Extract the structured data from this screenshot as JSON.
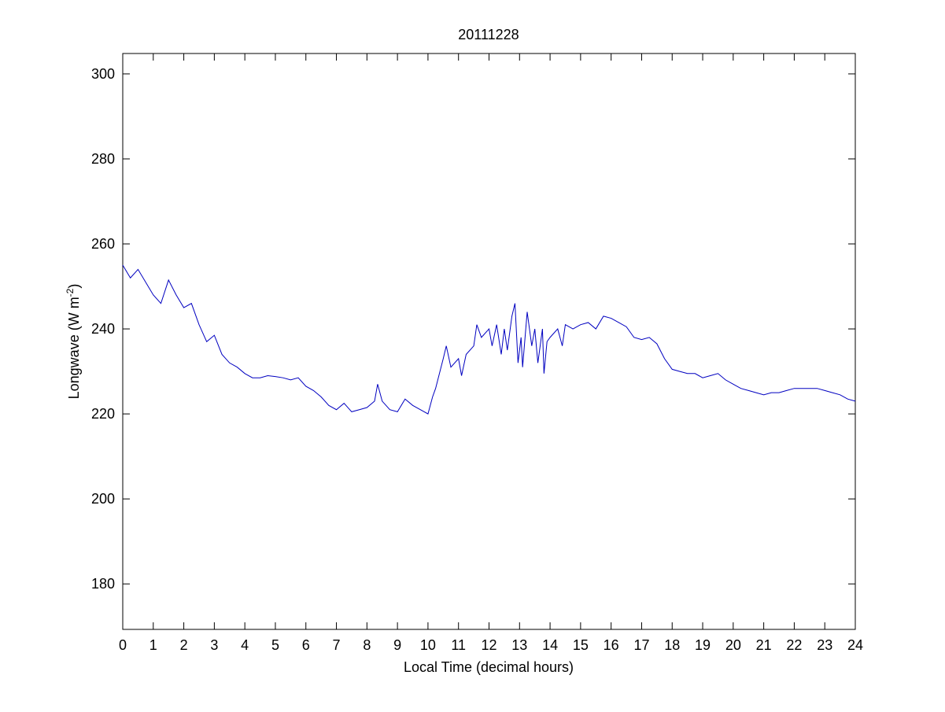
{
  "chart_data": {
    "type": "line",
    "title": "20111228",
    "xlabel": "Local Time (decimal hours)",
    "ylabel": [
      "Longwave (W m",
      "-2",
      ")"
    ],
    "xlim": [
      0,
      24
    ],
    "xticks": [
      0,
      1,
      2,
      3,
      4,
      5,
      6,
      7,
      8,
      9,
      10,
      11,
      12,
      13,
      14,
      15,
      16,
      17,
      18,
      19,
      20,
      21,
      22,
      23,
      24
    ],
    "ylim": [
      169.3,
      304.8
    ],
    "yticks": [
      180,
      200,
      220,
      240,
      260,
      280,
      300
    ],
    "grid": false,
    "series": [
      {
        "name": "Longwave",
        "color": "#0000c0",
        "x": [
          0,
          0.25,
          0.5,
          0.75,
          1,
          1.25,
          1.5,
          1.75,
          2,
          2.25,
          2.5,
          2.75,
          3,
          3.25,
          3.5,
          3.75,
          4,
          4.25,
          4.5,
          4.75,
          5,
          5.25,
          5.5,
          5.75,
          6,
          6.25,
          6.5,
          6.75,
          7,
          7.25,
          7.5,
          7.75,
          8,
          8.25,
          8.35,
          8.5,
          8.75,
          9,
          9.25,
          9.5,
          9.75,
          10,
          10.15,
          10.25,
          10.5,
          10.6,
          10.75,
          11,
          11.1,
          11.25,
          11.5,
          11.6,
          11.75,
          12,
          12.1,
          12.25,
          12.4,
          12.5,
          12.6,
          12.75,
          12.85,
          12.95,
          13.05,
          13.1,
          13.25,
          13.4,
          13.5,
          13.6,
          13.75,
          13.8,
          13.9,
          14,
          14.25,
          14.4,
          14.5,
          14.75,
          15,
          15.25,
          15.5,
          15.75,
          16,
          16.25,
          16.5,
          16.75,
          17,
          17.25,
          17.5,
          17.75,
          18,
          18.25,
          18.5,
          18.75,
          19,
          19.25,
          19.5,
          19.75,
          20,
          20.25,
          20.5,
          20.75,
          21,
          21.25,
          21.5,
          21.75,
          22,
          22.25,
          22.5,
          22.75,
          23,
          23.25,
          23.5,
          23.75,
          24
        ],
        "values": [
          255,
          252,
          254,
          251,
          248,
          246,
          251.5,
          248,
          245,
          246,
          241,
          237,
          238.5,
          234,
          232,
          231,
          229.5,
          228.5,
          228.5,
          229,
          228.8,
          228.5,
          228,
          228.5,
          226.5,
          225.5,
          224,
          222,
          221,
          222.5,
          220.5,
          221,
          221.5,
          223,
          227,
          223,
          221,
          220.5,
          223.5,
          222,
          221,
          220,
          224,
          226,
          233,
          236,
          231,
          233,
          229,
          234,
          236,
          241,
          238,
          240,
          236,
          241,
          234,
          240,
          235,
          243,
          246,
          232,
          238,
          231,
          244,
          236,
          240,
          232,
          240,
          229.5,
          237,
          238,
          240,
          236,
          241,
          240,
          241,
          241.5,
          240,
          243,
          242.5,
          241.5,
          240.5,
          238,
          237.5,
          238,
          236.5,
          233,
          230.5,
          230,
          229.5,
          229.5,
          228.5,
          229,
          229.5,
          228,
          227,
          226,
          225.5,
          225,
          224.5,
          225,
          225,
          225.5,
          226,
          226,
          226,
          226,
          225.5,
          225,
          224.5,
          223.5,
          223
        ]
      }
    ]
  }
}
